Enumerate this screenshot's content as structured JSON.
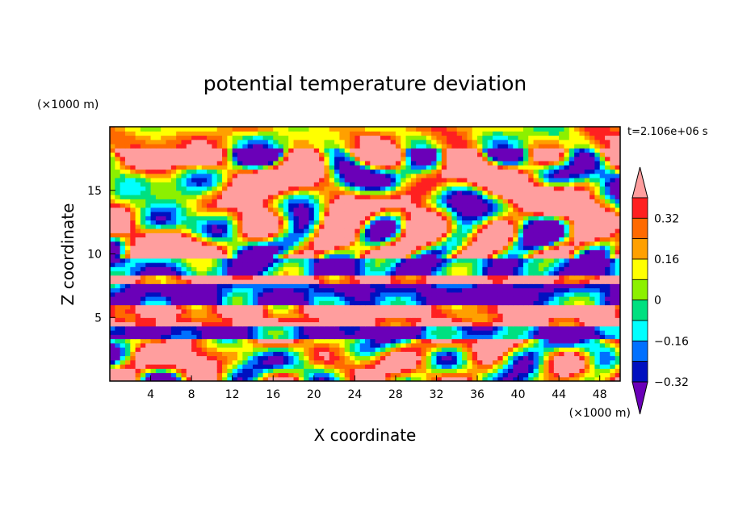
{
  "chart_data": {
    "type": "heatmap",
    "title": "potential temperature deviation",
    "xlabel": "X coordinate",
    "ylabel": "Z coordinate",
    "x_unit": "(×1000 m)",
    "y_unit": "(×1000 m)",
    "time_label": "t=2.106e+06 s",
    "xlim": [
      0,
      50
    ],
    "ylim": [
      0,
      20
    ],
    "x_ticks": [
      4,
      8,
      12,
      16,
      20,
      24,
      28,
      32,
      36,
      40,
      44,
      48
    ],
    "y_ticks": [
      5,
      10,
      15
    ],
    "colorbar": {
      "levels": [
        -0.4,
        -0.32,
        -0.24,
        -0.16,
        -0.08,
        0,
        0.08,
        0.16,
        0.24,
        0.32,
        0.4
      ],
      "tick_labels": [
        "0.32",
        "0.16",
        "0",
        "−0.16",
        "−0.32"
      ],
      "tick_values": [
        0.32,
        0.16,
        0,
        -0.16,
        -0.32
      ],
      "colors": [
        "#ff9e9e",
        "#ff2020",
        "#ff6a00",
        "#ffa000",
        "#ffff00",
        "#8cf000",
        "#00e080",
        "#00ffff",
        "#0070ff",
        "#0010c0",
        "#6a00b8"
      ],
      "extend": "both"
    },
    "bands": [
      {
        "z": [
          0,
          3.5
        ],
        "value": 0.08
      },
      {
        "z": [
          3.5,
          4.3
        ],
        "value": -0.4
      },
      {
        "z": [
          4.3,
          4.8
        ],
        "value": 0.4
      },
      {
        "z": [
          4.8,
          5.4
        ],
        "value": 0.32
      },
      {
        "z": [
          5.4,
          6.0
        ],
        "value": 0.4
      },
      {
        "z": [
          6.0,
          7.6
        ],
        "value": -0.4
      },
      {
        "z": [
          7.6,
          8.4
        ],
        "value": 0.4
      },
      {
        "z": [
          8.4,
          9.6
        ],
        "value": -0.32
      },
      {
        "z": [
          9.6,
          18.2
        ],
        "value": 0.16
      },
      {
        "z": [
          18.2,
          20
        ],
        "value": 0.08
      }
    ]
  }
}
